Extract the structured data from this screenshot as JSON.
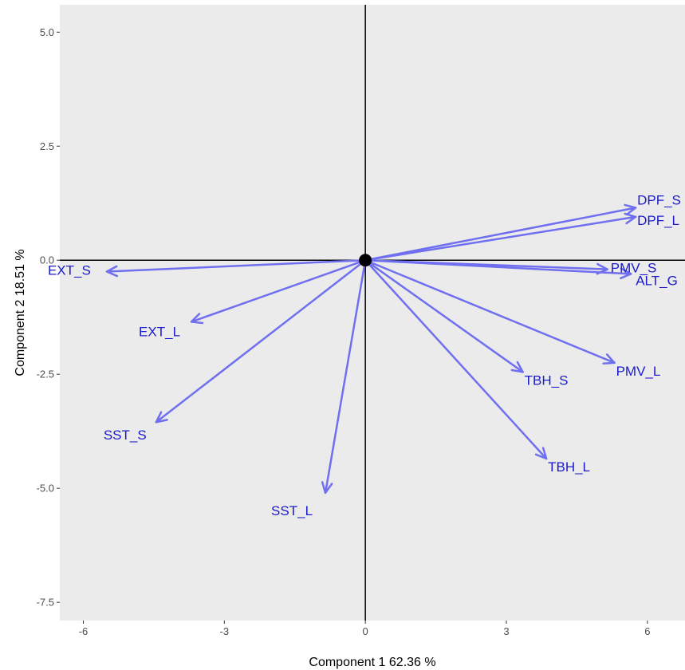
{
  "chart_data": {
    "type": "scatter",
    "title": "",
    "xlabel": "Component 1 62.36 %",
    "ylabel": "Component 2 18.51 %",
    "xlim": [
      -6.5,
      6.8
    ],
    "ylim": [
      -7.9,
      5.6
    ],
    "x_ticks": [
      "-6",
      "-3",
      "0",
      "3",
      "6"
    ],
    "x_tick_values": [
      -6,
      -3,
      0,
      3,
      6
    ],
    "y_ticks": [
      "5.0",
      "2.5",
      "0.0",
      "-2.5",
      "-5.0",
      "-7.5"
    ],
    "y_tick_values": [
      5.0,
      2.5,
      0.0,
      -2.5,
      -5.0,
      -7.5
    ],
    "grid": false,
    "origin_marker": {
      "x": 0,
      "y": 0
    },
    "vectors": [
      {
        "name": "DPF_S",
        "x": 5.75,
        "y": 1.15
      },
      {
        "name": "DPF_L",
        "x": 5.75,
        "y": 0.95
      },
      {
        "name": "PMV_S",
        "x": 5.15,
        "y": -0.2
      },
      {
        "name": "ALT_G",
        "x": 5.65,
        "y": -0.3
      },
      {
        "name": "EXT_S",
        "x": -5.5,
        "y": -0.25
      },
      {
        "name": "EXT_L",
        "x": -3.7,
        "y": -1.35
      },
      {
        "name": "PMV_L",
        "x": 5.3,
        "y": -2.25
      },
      {
        "name": "TBH_S",
        "x": 3.35,
        "y": -2.45
      },
      {
        "name": "TBH_L",
        "x": 3.85,
        "y": -4.35
      },
      {
        "name": "SST_S",
        "x": -4.45,
        "y": -3.55
      },
      {
        "name": "SST_L",
        "x": -0.85,
        "y": -5.1
      }
    ],
    "colors": {
      "panel": "#ebebeb",
      "arrow": "#6f6ff0",
      "label": "#1a1acc",
      "axis_line": "#000000",
      "tick": "#4d4d4d"
    }
  }
}
